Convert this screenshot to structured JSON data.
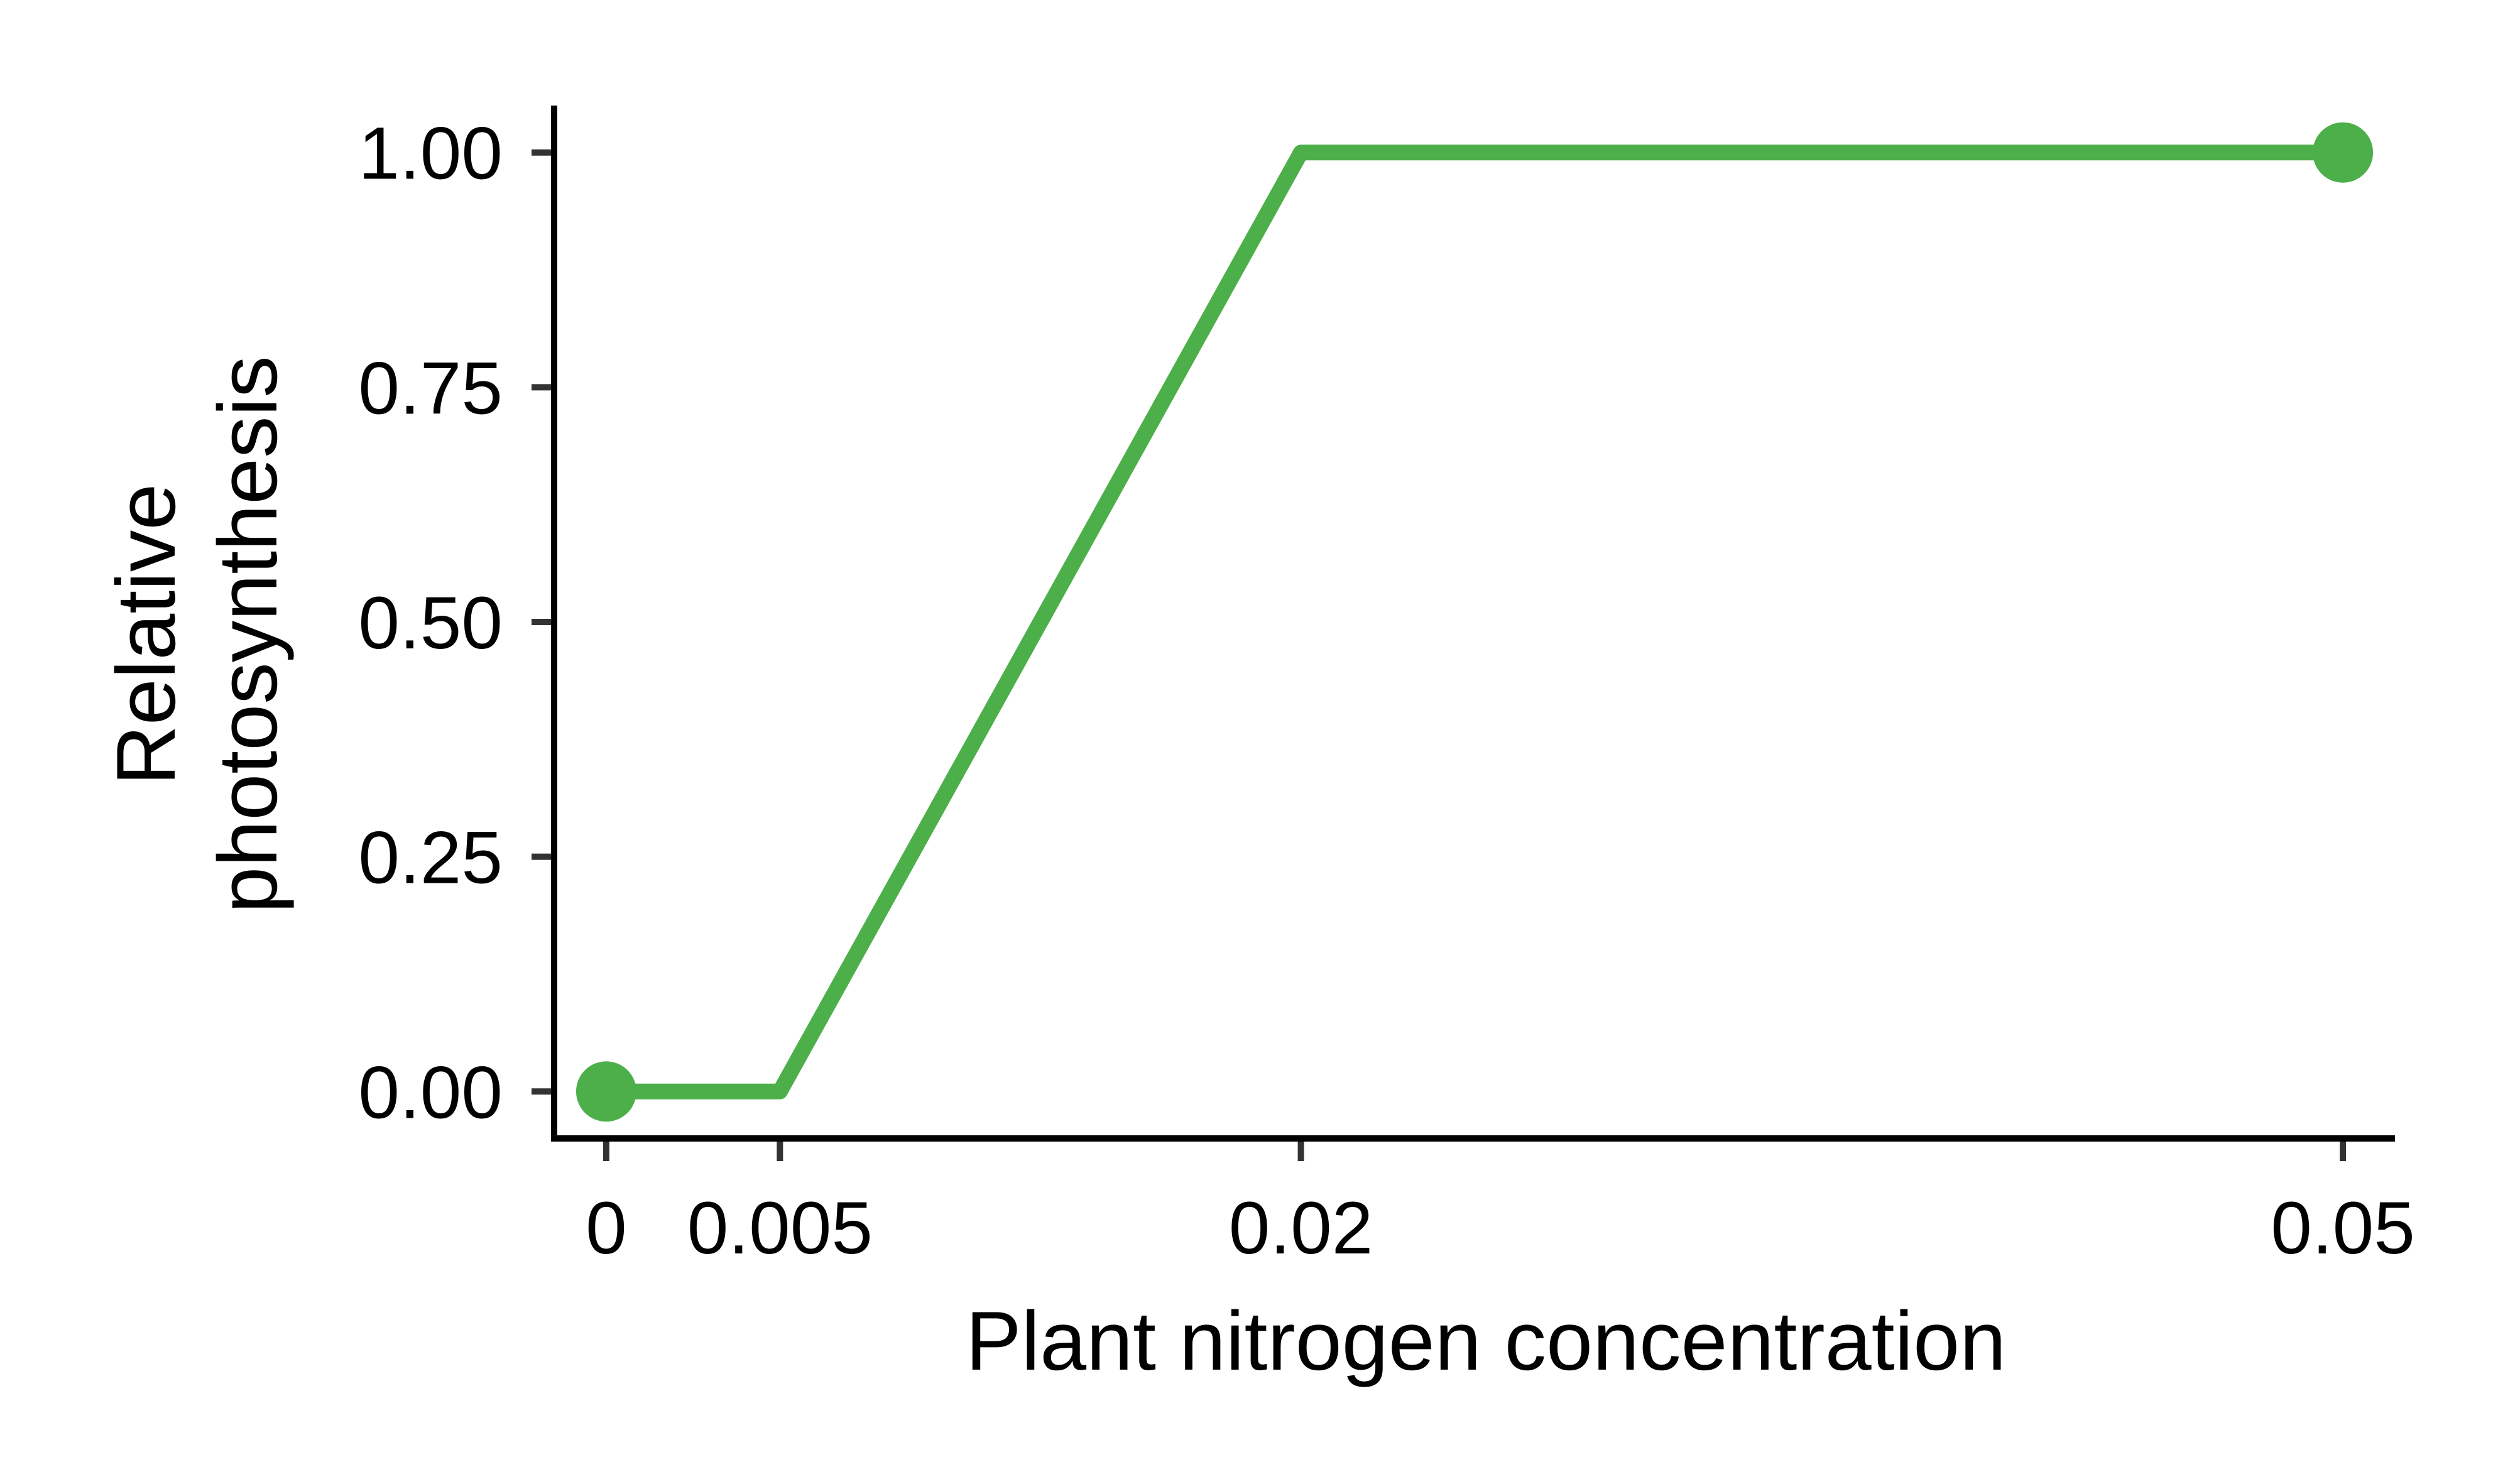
{
  "chart_data": {
    "type": "line",
    "title": "",
    "xlabel": "Plant nitrogen concentration",
    "ylabel_lines": [
      "Relative",
      "photosynthesis"
    ],
    "x_ticks": [
      {
        "value": 0,
        "label": "0"
      },
      {
        "value": 0.005,
        "label": "0.005"
      },
      {
        "value": 0.02,
        "label": "0.02"
      },
      {
        "value": 0.05,
        "label": "0.05"
      }
    ],
    "y_ticks": [
      {
        "value": 0,
        "label": "0.00"
      },
      {
        "value": 0.25,
        "label": "0.25"
      },
      {
        "value": 0.5,
        "label": "0.50"
      },
      {
        "value": 0.75,
        "label": "0.75"
      },
      {
        "value": 1,
        "label": "1.00"
      }
    ],
    "xlim": [
      -0.0015,
      0.0515
    ],
    "ylim": [
      -0.05,
      1.05
    ],
    "grid": false,
    "legend": "none",
    "series": [
      {
        "color": "#4daf4a",
        "x": [
          0,
          0.005,
          0.02,
          0.05
        ],
        "y": [
          0,
          0,
          1,
          1
        ],
        "endpoint_markers": [
          {
            "x": 0,
            "y": 0
          },
          {
            "x": 0.05,
            "y": 1
          }
        ]
      }
    ]
  }
}
